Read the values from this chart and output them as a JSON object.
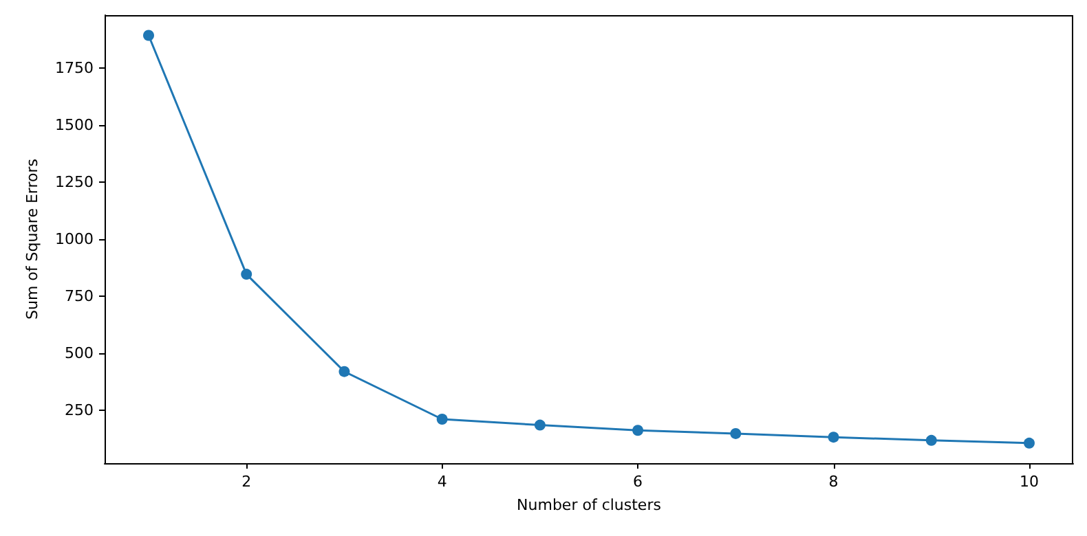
{
  "chart_data": {
    "type": "line",
    "xlabel": "Number of clusters",
    "ylabel": "Sum of Square Errors",
    "x": [
      1,
      2,
      3,
      4,
      5,
      6,
      7,
      8,
      9,
      10
    ],
    "series": [
      {
        "color": "#1f77b4",
        "values": [
          1894,
          846,
          419,
          210,
          184,
          161,
          147,
          131,
          117,
          105
        ]
      }
    ],
    "xlim": [
      0.55,
      10.45
    ],
    "xticks": [
      2,
      4,
      6,
      8,
      10
    ],
    "ylim": [
      17,
      1983
    ],
    "yticks": [
      250,
      500,
      750,
      1000,
      1250,
      1500,
      1750
    ],
    "marker": "circle",
    "grid": false
  }
}
